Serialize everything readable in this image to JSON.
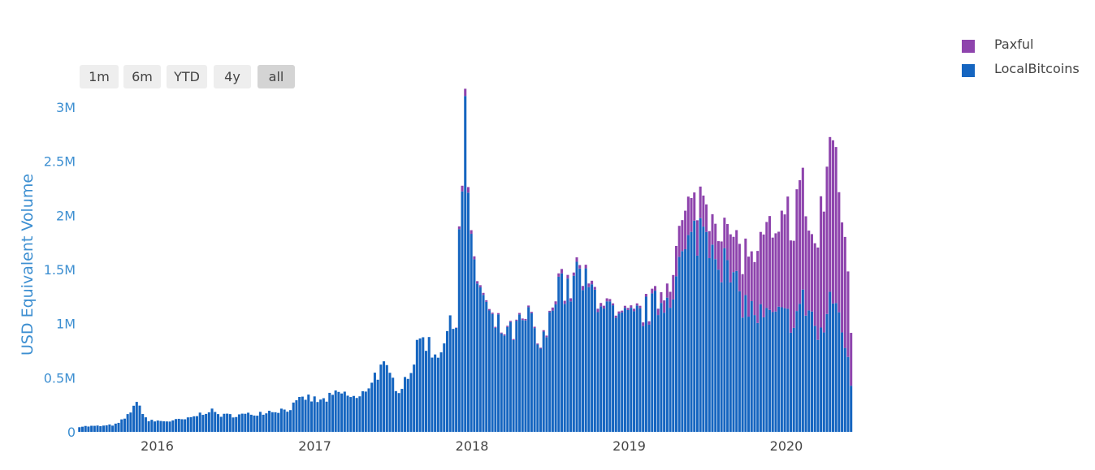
{
  "colors": {
    "series_0": "#1565c0",
    "series_1": "#8e44ad",
    "tick_text": "#3d8fd1",
    "axis_title": "#3d8fd1",
    "year_text": "#444444"
  },
  "range_selector": {
    "buttons": [
      {
        "label": "1m",
        "active": false
      },
      {
        "label": "6m",
        "active": false
      },
      {
        "label": "YTD",
        "active": false
      },
      {
        "label": "4y",
        "active": false
      },
      {
        "label": "all",
        "active": true
      }
    ]
  },
  "legend": {
    "position": "top-right",
    "items": [
      {
        "label": "Paxful",
        "color_key": "series_1"
      },
      {
        "label": "LocalBitcoins",
        "color_key": "series_0"
      }
    ]
  },
  "chart_data": {
    "type": "bar",
    "stacked": true,
    "title": "",
    "xlabel": "",
    "ylabel": "USD Equivalent Volume",
    "ylim": [
      0,
      3000000
    ],
    "yticks": [
      {
        "v": 0,
        "label": "0"
      },
      {
        "v": 500000,
        "label": "0.5M"
      },
      {
        "v": 1000000,
        "label": "1M"
      },
      {
        "v": 1500000,
        "label": "1.5M"
      },
      {
        "v": 2000000,
        "label": "2M"
      },
      {
        "v": 2500000,
        "label": "2.5M"
      },
      {
        "v": 3000000,
        "label": "3M"
      }
    ],
    "xticks": [
      {
        "date": "2016-01-01",
        "label": "2016"
      },
      {
        "date": "2017-01-01",
        "label": "2017"
      },
      {
        "date": "2018-01-01",
        "label": "2018"
      },
      {
        "date": "2019-01-01",
        "label": "2019"
      },
      {
        "date": "2020-01-01",
        "label": "2020"
      }
    ],
    "xlim": [
      "2015-07-01",
      "2020-06-15"
    ],
    "grid": false,
    "x_interval": "weekly",
    "anchors": [
      [
        "2015-07-05",
        50000,
        0
      ],
      [
        "2015-09-01",
        55000,
        0
      ],
      [
        "2015-10-01",
        70000,
        0
      ],
      [
        "2015-10-25",
        150000,
        0
      ],
      [
        "2015-11-10",
        260000,
        0
      ],
      [
        "2015-11-25",
        220000,
        0
      ],
      [
        "2015-12-10",
        100000,
        0
      ],
      [
        "2016-02-01",
        100000,
        0
      ],
      [
        "2016-03-15",
        120000,
        0
      ],
      [
        "2016-05-01",
        200000,
        0
      ],
      [
        "2016-06-01",
        150000,
        0
      ],
      [
        "2016-08-01",
        160000,
        0
      ],
      [
        "2016-09-15",
        190000,
        0
      ],
      [
        "2016-11-01",
        210000,
        0
      ],
      [
        "2016-12-10",
        320000,
        0
      ],
      [
        "2017-01-15",
        280000,
        0
      ],
      [
        "2017-03-01",
        360000,
        0
      ],
      [
        "2017-04-15",
        300000,
        0
      ],
      [
        "2017-05-20",
        520000,
        0
      ],
      [
        "2017-06-10",
        590000,
        0
      ],
      [
        "2017-07-15",
        400000,
        0
      ],
      [
        "2017-08-10",
        560000,
        0
      ],
      [
        "2017-09-10",
        900000,
        0
      ],
      [
        "2017-10-10",
        700000,
        0
      ],
      [
        "2017-11-01",
        900000,
        0
      ],
      [
        "2017-11-25",
        1000000,
        0
      ],
      [
        "2017-12-03",
        1920000,
        30000
      ],
      [
        "2017-12-17",
        2880000,
        60000
      ],
      [
        "2017-12-31",
        1620000,
        30000
      ],
      [
        "2018-01-20",
        1350000,
        20000
      ],
      [
        "2018-02-15",
        1000000,
        10000
      ],
      [
        "2018-04-01",
        900000,
        10000
      ],
      [
        "2018-05-15",
        1050000,
        15000
      ],
      [
        "2018-06-10",
        750000,
        10000
      ],
      [
        "2018-07-01",
        1000000,
        15000
      ],
      [
        "2018-07-20",
        1500000,
        40000
      ],
      [
        "2018-08-10",
        1240000,
        30000
      ],
      [
        "2018-09-01",
        1450000,
        40000
      ],
      [
        "2018-10-01",
        1300000,
        30000
      ],
      [
        "2018-11-01",
        1250000,
        30000
      ],
      [
        "2018-12-01",
        1000000,
        20000
      ],
      [
        "2019-01-15",
        1050000,
        20000
      ],
      [
        "2019-03-01",
        1150000,
        40000
      ],
      [
        "2019-04-01",
        1250000,
        150000
      ],
      [
        "2019-05-01",
        1550000,
        300000
      ],
      [
        "2019-06-15",
        1900000,
        300000
      ],
      [
        "2019-07-15",
        1800000,
        300000
      ],
      [
        "2019-08-15",
        1500000,
        350000
      ],
      [
        "2019-09-15",
        1250000,
        450000
      ],
      [
        "2019-10-15",
        1100000,
        500000
      ],
      [
        "2019-11-15",
        1050000,
        700000
      ],
      [
        "2019-12-15",
        1050000,
        800000
      ],
      [
        "2020-01-20",
        1050000,
        1000000
      ],
      [
        "2020-02-10",
        1200000,
        1000000
      ],
      [
        "2020-03-01",
        1100000,
        650000
      ],
      [
        "2020-03-15",
        850000,
        950000
      ],
      [
        "2020-04-01",
        1000000,
        1300000
      ],
      [
        "2020-04-19",
        1250000,
        1450000
      ],
      [
        "2020-05-10",
        1000000,
        1200000
      ],
      [
        "2020-05-31",
        440000,
        520000
      ]
    ]
  }
}
